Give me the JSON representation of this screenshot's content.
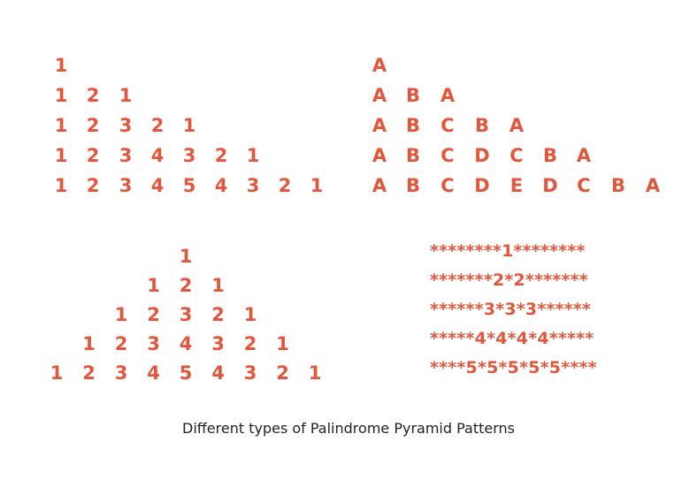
{
  "colors": {
    "pattern": "#e2573c",
    "caption": "#222222"
  },
  "number_pyramid_left": [
    [
      "1"
    ],
    [
      "1",
      "2",
      "1"
    ],
    [
      "1",
      "2",
      "3",
      "2",
      "1"
    ],
    [
      "1",
      "2",
      "3",
      "4",
      "3",
      "2",
      "1"
    ],
    [
      "1",
      "2",
      "3",
      "4",
      "5",
      "4",
      "3",
      "2",
      "1"
    ]
  ],
  "letter_pyramid": [
    [
      "A"
    ],
    [
      "A",
      "B",
      "A"
    ],
    [
      "A",
      "B",
      "C",
      "B",
      "A"
    ],
    [
      "A",
      "B",
      "C",
      "D",
      "C",
      "B",
      "A"
    ],
    [
      "A",
      "B",
      "C",
      "D",
      "E",
      "D",
      "C",
      "B",
      "A"
    ]
  ],
  "number_pyramid_centered": [
    [
      "1"
    ],
    [
      "1",
      "2",
      "1"
    ],
    [
      "1",
      "2",
      "3",
      "2",
      "1"
    ],
    [
      "1",
      "2",
      "3",
      "4",
      "3",
      "2",
      "1"
    ],
    [
      "1",
      "2",
      "3",
      "4",
      "5",
      "4",
      "3",
      "2",
      "1"
    ]
  ],
  "star_pattern": [
    "********1********",
    "*******2*2*******",
    "******3*3*3******",
    "*****4*4*4*4*****",
    "****5*5*5*5*5****"
  ],
  "caption": "Different types of Palindrome Pyramid Patterns"
}
